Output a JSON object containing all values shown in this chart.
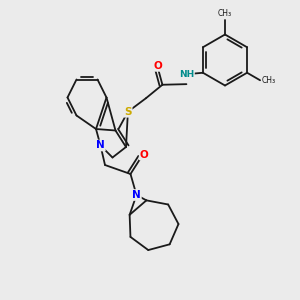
{
  "background_color": "#ebebeb",
  "atom_colors": {
    "O": "#ff0000",
    "N": "#0000ff",
    "S": "#ccaa00",
    "NH": "#008b8b",
    "C": "#1a1a1a"
  },
  "bond_color": "#1a1a1a",
  "line_width": 1.3,
  "xlim": [
    0,
    10
  ],
  "ylim": [
    0,
    10
  ]
}
